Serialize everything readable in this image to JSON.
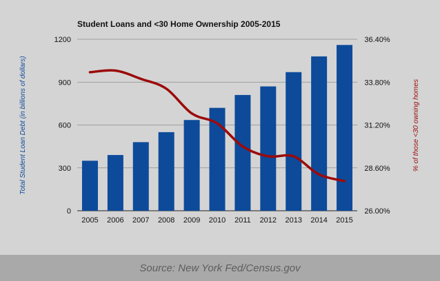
{
  "chart_data": {
    "type": "bar+line",
    "title": "Student Loans and <30 Home Ownership 2005-2015",
    "categories": [
      "2005",
      "2006",
      "2007",
      "2008",
      "2009",
      "2010",
      "2011",
      "2012",
      "2013",
      "2014",
      "2015"
    ],
    "series": [
      {
        "name": "Total Student Loan Debt",
        "type": "bar",
        "axis": "left",
        "color": "#0d4a9a",
        "values": [
          350,
          390,
          480,
          550,
          635,
          720,
          810,
          870,
          970,
          1080,
          1160
        ]
      },
      {
        "name": "% of those <30 owning homes",
        "type": "line",
        "axis": "right",
        "color": "#9b0a0a",
        "values": [
          34.4,
          34.5,
          34.0,
          33.4,
          31.9,
          31.3,
          29.9,
          29.3,
          29.3,
          28.2,
          27.8
        ]
      }
    ],
    "ylabel_left": "Total Student Loan Debt (in billions of dollars)",
    "ylabel_right": "% of those <30 owning homes",
    "ylim_left": [
      0,
      1200
    ],
    "ylim_right": [
      26.0,
      36.4
    ],
    "yticks_left": [
      "0",
      "300",
      "600",
      "900",
      "1200"
    ],
    "yticks_right": [
      "26.00%",
      "28.60%",
      "31.20%",
      "33.80%",
      "36.40%"
    ],
    "grid": true
  },
  "footer": {
    "source": "Source: New York Fed/Census.gov"
  }
}
